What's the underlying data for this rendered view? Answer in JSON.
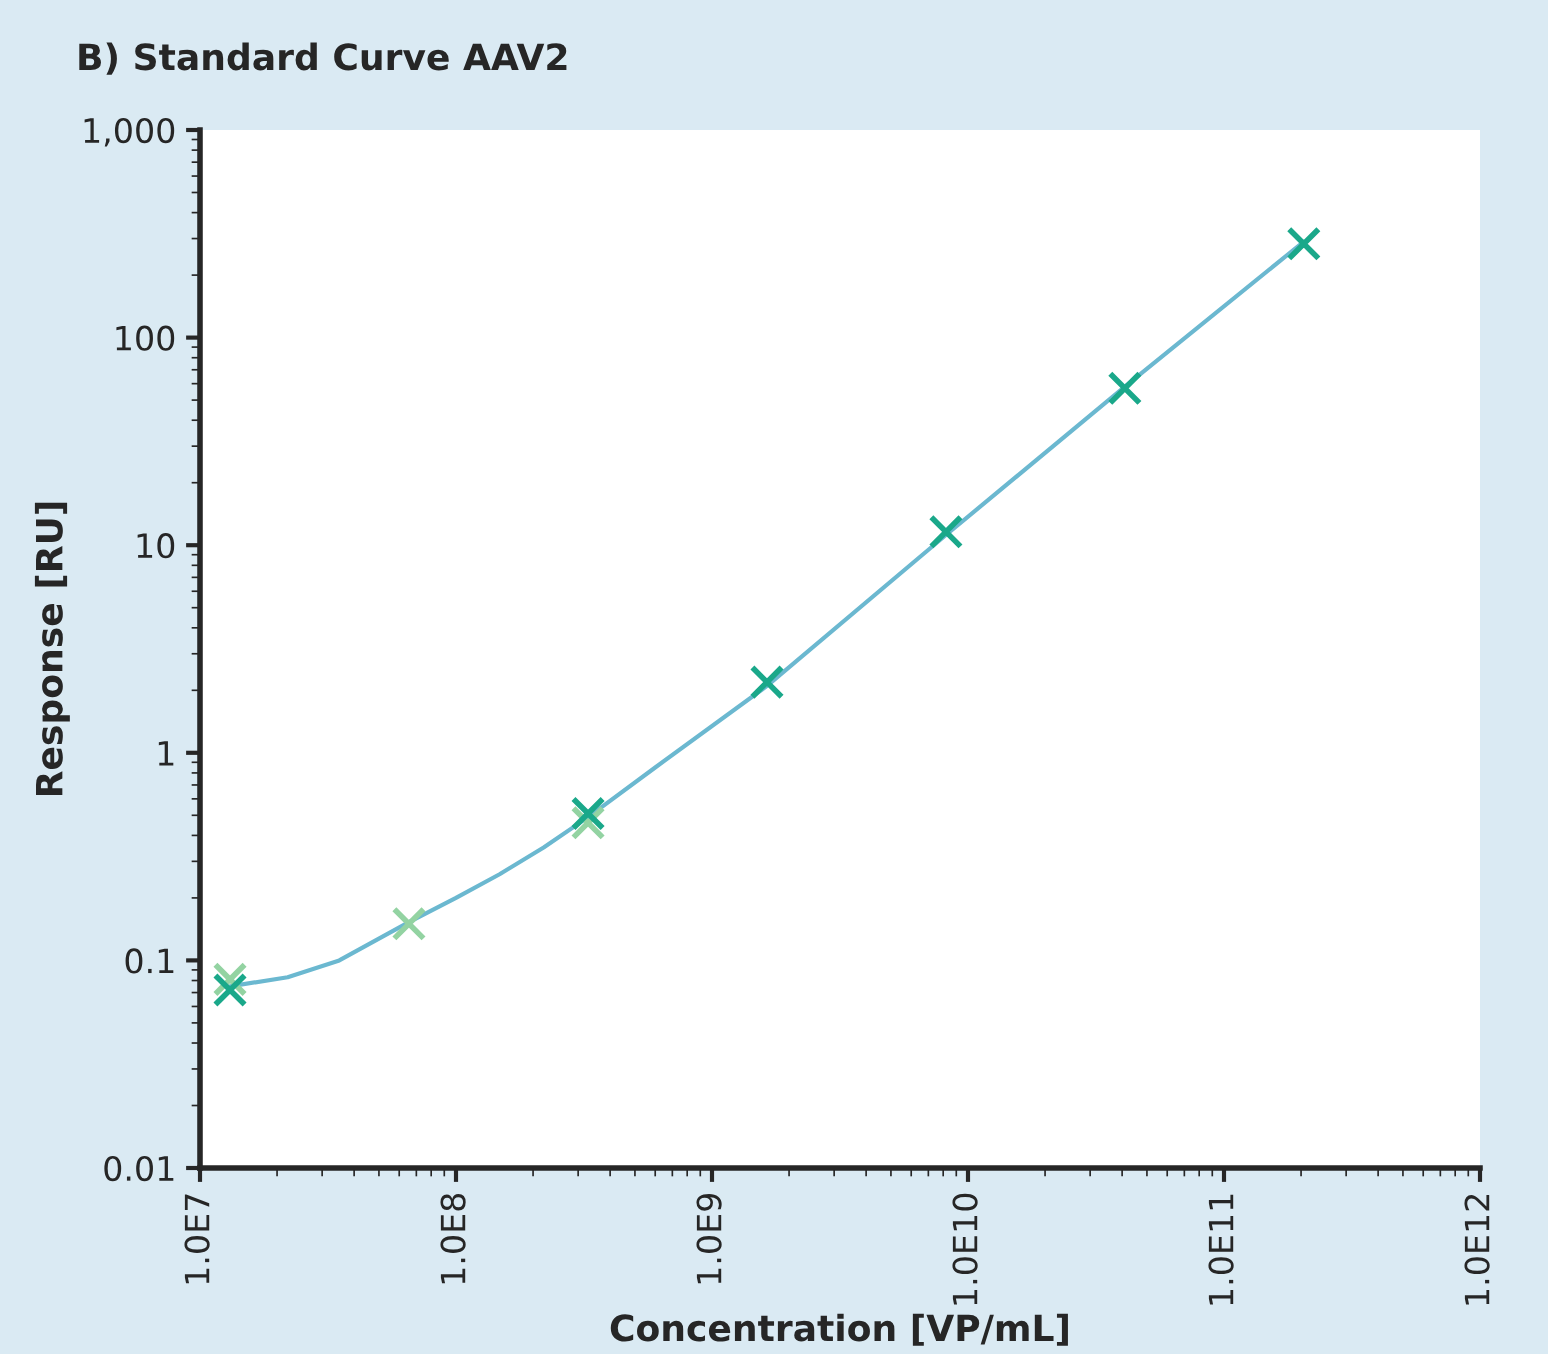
{
  "chart_data": {
    "type": "scatter",
    "title": "B) Standard Curve AAV2",
    "xlabel": "Concentration [VP/mL]",
    "ylabel": "Response [RU]",
    "log": "xy",
    "marker": "cross",
    "grid": false,
    "xlim": [
      10000000.0,
      1000000000000.0
    ],
    "xticks": [
      {
        "value": 10000000.0,
        "label": "1.0E7"
      },
      {
        "value": 100000000.0,
        "label": "1.0E8"
      },
      {
        "value": 1000000000.0,
        "label": "1.0E9"
      },
      {
        "value": 10000000000.0,
        "label": "1.0E10"
      },
      {
        "value": 100000000000.0,
        "label": "1.0E11"
      },
      {
        "value": 1000000000000.0,
        "label": "1.0E12"
      }
    ],
    "ylim": [
      0.01,
      1000
    ],
    "yticks": [
      0.01,
      0.1,
      1,
      10,
      100,
      {
        "value": 1000,
        "label": "1,000"
      }
    ],
    "x": [
      13100000.0,
      65500000.0,
      328000000.0,
      1640000000.0,
      8200000000.0,
      41000000000.0,
      205000000000.0
    ],
    "series": [
      {
        "color": "#93d3a2",
        "values": [
          0.081,
          0.15,
          0.46,
          null,
          null,
          null,
          null
        ]
      },
      {
        "color": "#1aa88a",
        "values": [
          0.072,
          null,
          0.51,
          2.19,
          11.6,
          57,
          283
        ]
      },
      {
        "type": "line",
        "color": "#6bb8d0",
        "line_style": "solid",
        "marker": "none",
        "x": [
          13100000.0,
          22000000.0,
          35000000.0,
          65500000.0,
          100000000.0,
          148000000.0,
          220000000.0,
          328000000.0,
          600000000.0,
          1640000000.0,
          8200000000.0,
          41000000000.0,
          205000000000.0
        ],
        "values": [
          0.075,
          0.083,
          0.1,
          0.153,
          0.2,
          0.26,
          0.35,
          0.49,
          0.85,
          2.1,
          11.2,
          58,
          290
        ]
      }
    ]
  }
}
